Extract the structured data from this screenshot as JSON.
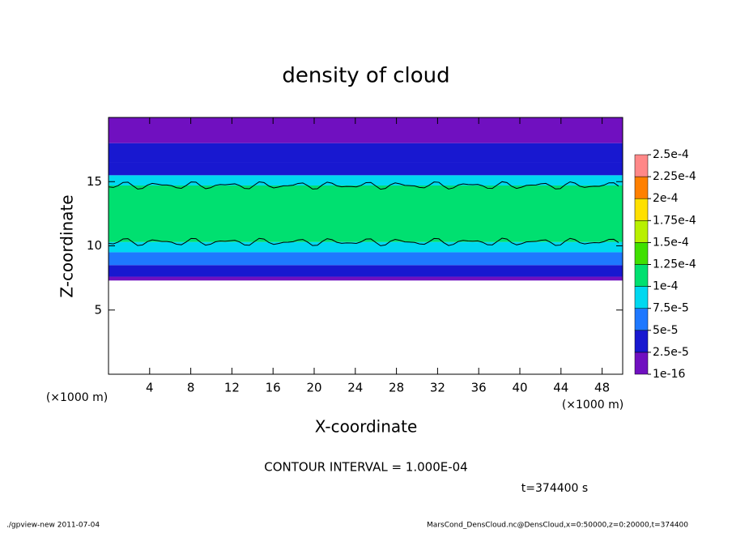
{
  "chart_data": {
    "type": "contour",
    "title": "density of cloud",
    "xlabel": "X-coordinate",
    "ylabel": "Z-coordinate",
    "xunit": "(×1000 m)",
    "yunit": "(×1000 m)",
    "xlim": [
      0,
      50
    ],
    "xticks": [
      4,
      8,
      12,
      16,
      20,
      24,
      28,
      32,
      36,
      40,
      44,
      48
    ],
    "ylim": [
      0,
      20
    ],
    "yticks": [
      5,
      10,
      15
    ],
    "profile": {
      "z_edges": [
        7.3,
        7.6,
        8.5,
        9.5,
        10.3,
        14.7,
        15.5,
        16.5,
        18,
        20
      ],
      "values": [
        1e-05,
        3e-05,
        6e-05,
        9e-05,
        0.00011,
        8e-05,
        5e-05,
        3e-05,
        1.2e-05
      ]
    },
    "contour_levels": [
      0.0001
    ],
    "colorbar": {
      "ticks": [
        {
          "value": 1e-16,
          "label": "1e-16"
        },
        {
          "value": 2.5e-05,
          "label": "2.5e-5"
        },
        {
          "value": 5e-05,
          "label": "5e-5"
        },
        {
          "value": 7.5e-05,
          "label": "7.5e-5"
        },
        {
          "value": 0.0001,
          "label": "1e-4"
        },
        {
          "value": 0.000125,
          "label": "1.25e-4"
        },
        {
          "value": 0.00015,
          "label": "1.5e-4"
        },
        {
          "value": 0.000175,
          "label": "1.75e-4"
        },
        {
          "value": 0.0002,
          "label": "2e-4"
        },
        {
          "value": 0.000225,
          "label": "2.25e-4"
        },
        {
          "value": 0.00025,
          "label": "2.5e-4"
        }
      ],
      "colors": [
        "#7010c0",
        "#1818d0",
        "#1e78ff",
        "#00d8f0",
        "#00e070",
        "#40e000",
        "#b8f000",
        "#ffe000",
        "#ff8000",
        "#ff8888"
      ]
    },
    "contour_interval": "CONTOUR INTERVAL = 1.000E-04",
    "time_label": "t=374400 s",
    "footer_left": "./gpview-new  2011-07-04",
    "footer_right": "MarsCond_DensCloud.nc@DensCloud,x=0:50000,z=0:20000,t=374400"
  }
}
